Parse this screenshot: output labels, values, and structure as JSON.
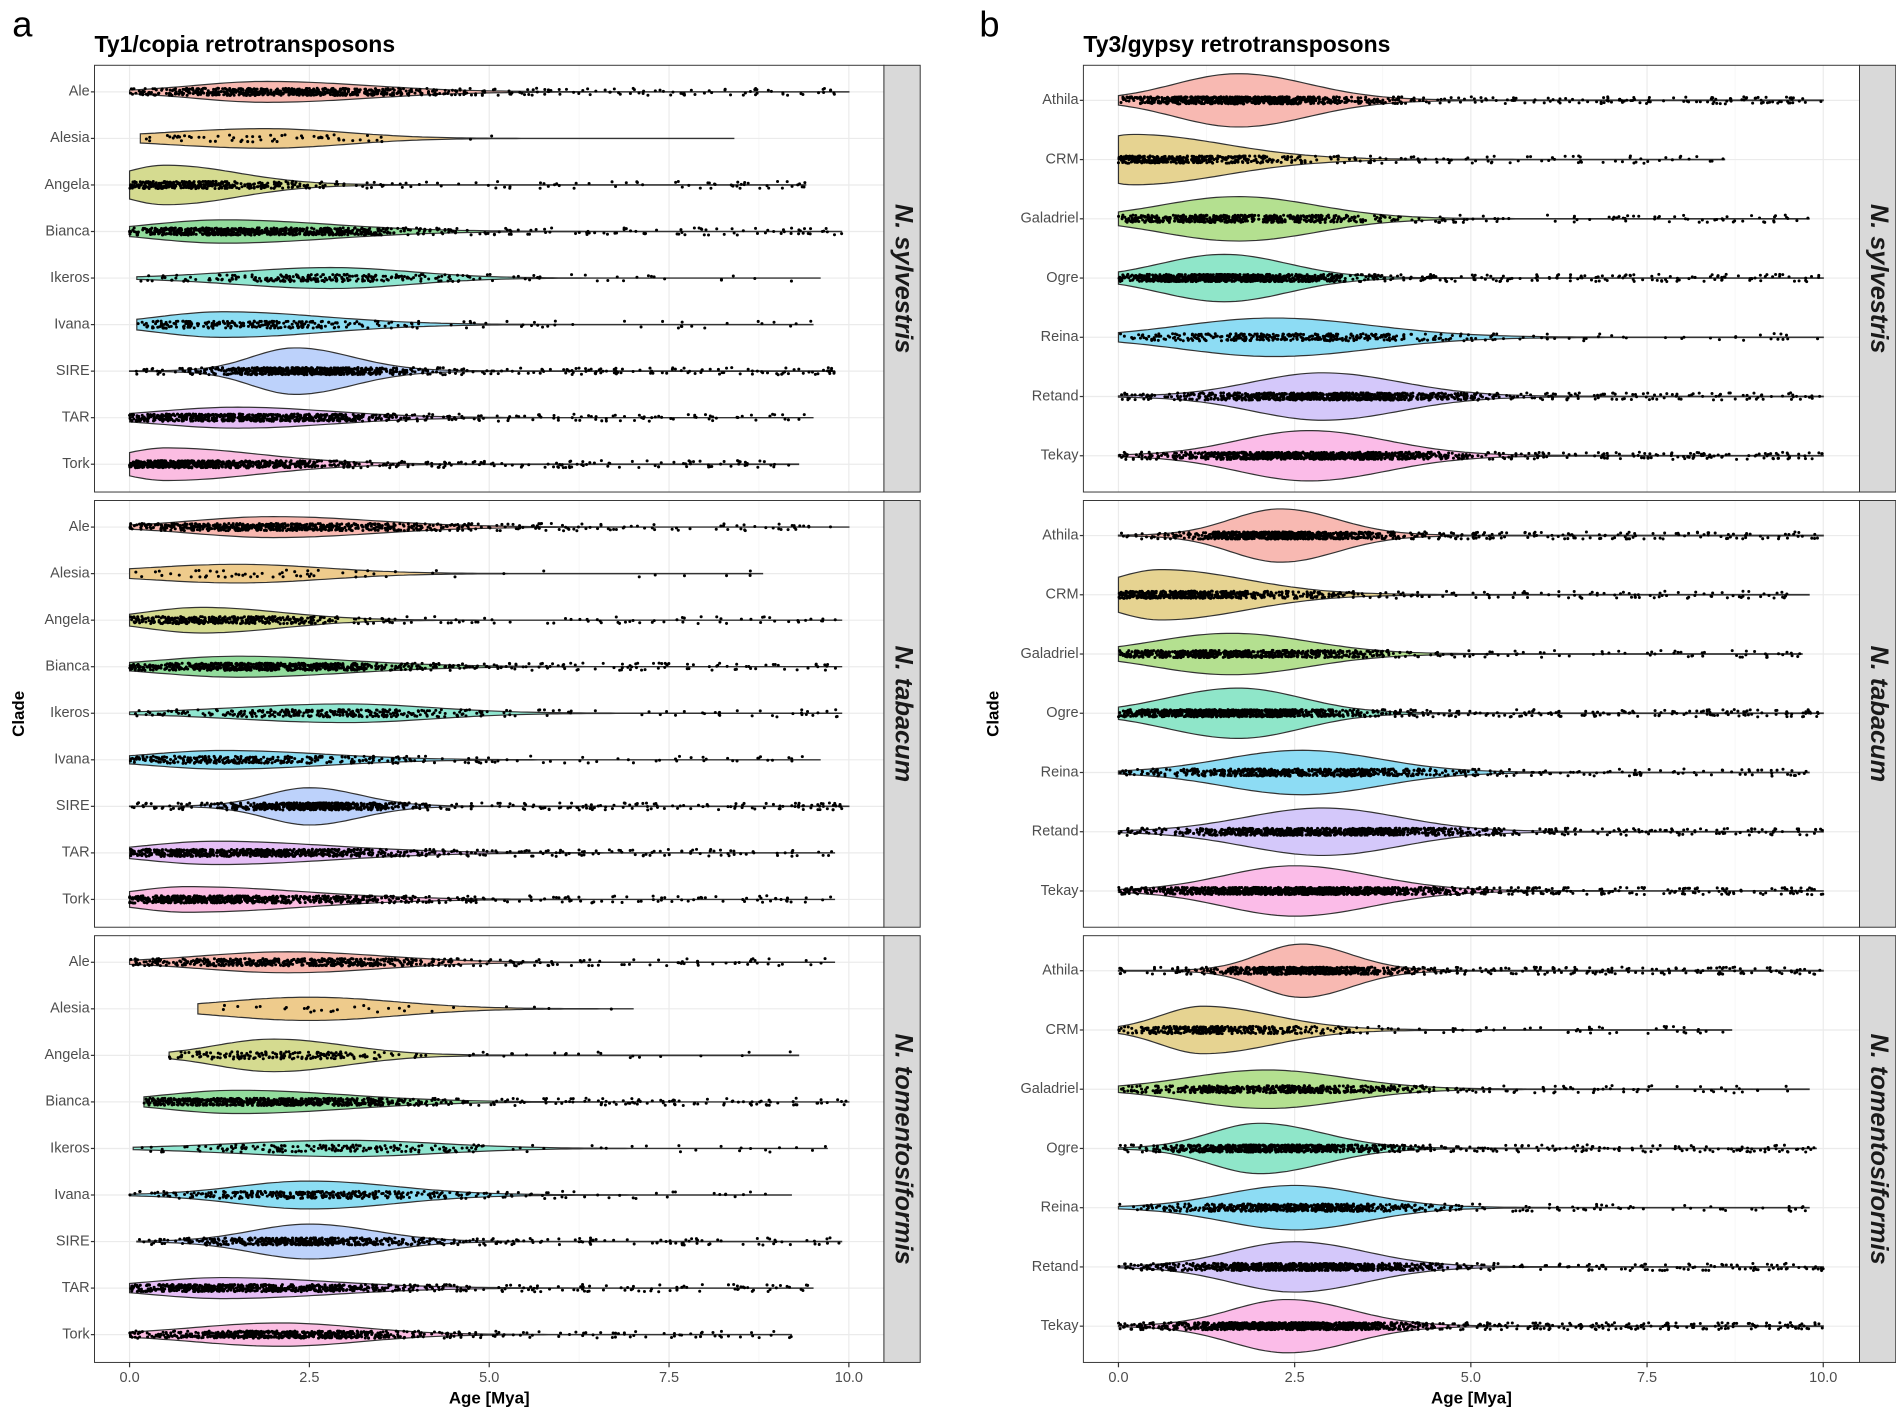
{
  "chart_data": [
    {
      "type": "violin",
      "letter": "a",
      "title": "Ty1/copia retrotransposons",
      "xlabel": "Age [Mya]",
      "ylabel": "Clade",
      "xlim": [
        0,
        10
      ],
      "xticks": [
        "0.0",
        "2.5",
        "5.0",
        "7.5",
        "10.0"
      ],
      "grid": true,
      "clades": [
        {
          "name": "Ale",
          "color": "#F8B8B0"
        },
        {
          "name": "Alesia",
          "color": "#EECB8C"
        },
        {
          "name": "Angela",
          "color": "#D5DB90"
        },
        {
          "name": "Bianca",
          "color": "#92DC9C"
        },
        {
          "name": "Ikeros",
          "color": "#8FE6D0"
        },
        {
          "name": "Ivana",
          "color": "#8CDDF3"
        },
        {
          "name": "SIRE",
          "color": "#BDD2FB"
        },
        {
          "name": "TAR",
          "color": "#E5BEF6"
        },
        {
          "name": "Tork",
          "color": "#FBBDE2"
        }
      ],
      "facets": [
        {
          "species": "N. sylvestris",
          "violins": [
            {
              "min": 0,
              "peak": 1.9,
              "sl": 1.0,
              "sr": 1.4,
              "max": 10.0,
              "width": 0.45,
              "n": 700
            },
            {
              "min": 0.15,
              "peak": 1.9,
              "sl": 1.4,
              "sr": 1.1,
              "max": 8.4,
              "width": 0.42,
              "n": 60
            },
            {
              "min": 0,
              "peak": 0.5,
              "sl": 0.6,
              "sr": 1.0,
              "max": 9.4,
              "width": 0.85,
              "n": 420
            },
            {
              "min": 0,
              "peak": 1.3,
              "sl": 1.0,
              "sr": 1.5,
              "max": 9.9,
              "width": 0.5,
              "n": 800
            },
            {
              "min": 0.1,
              "peak": 2.8,
              "sl": 1.3,
              "sr": 1.1,
              "max": 9.6,
              "width": 0.45,
              "n": 260
            },
            {
              "min": 0.1,
              "peak": 1.3,
              "sl": 0.9,
              "sr": 1.4,
              "max": 9.5,
              "width": 0.55,
              "n": 280
            },
            {
              "min": 0,
              "peak": 2.3,
              "sl": 0.6,
              "sr": 0.8,
              "max": 9.8,
              "width": 1.0,
              "n": 800
            },
            {
              "min": 0,
              "peak": 1.5,
              "sl": 1.1,
              "sr": 1.3,
              "max": 9.5,
              "width": 0.45,
              "n": 750
            },
            {
              "min": 0,
              "peak": 0.5,
              "sl": 0.6,
              "sr": 1.3,
              "max": 9.3,
              "width": 0.7,
              "n": 750
            }
          ]
        },
        {
          "species": "N. tabacum",
          "violins": [
            {
              "min": 0,
              "peak": 2.0,
              "sl": 1.1,
              "sr": 1.4,
              "max": 10.0,
              "width": 0.45,
              "n": 700
            },
            {
              "min": 0,
              "peak": 1.5,
              "sl": 1.3,
              "sr": 1.2,
              "max": 8.8,
              "width": 0.4,
              "n": 60
            },
            {
              "min": 0,
              "peak": 1.0,
              "sl": 0.8,
              "sr": 1.1,
              "max": 9.9,
              "width": 0.55,
              "n": 450
            },
            {
              "min": 0,
              "peak": 1.5,
              "sl": 1.1,
              "sr": 1.5,
              "max": 9.9,
              "width": 0.45,
              "n": 800
            },
            {
              "min": 0,
              "peak": 3.0,
              "sl": 1.5,
              "sr": 1.2,
              "max": 9.9,
              "width": 0.4,
              "n": 350
            },
            {
              "min": 0,
              "peak": 1.3,
              "sl": 1.0,
              "sr": 1.4,
              "max": 9.6,
              "width": 0.4,
              "n": 350
            },
            {
              "min": 0,
              "peak": 2.5,
              "sl": 0.6,
              "sr": 0.7,
              "max": 10.0,
              "width": 0.8,
              "n": 700
            },
            {
              "min": 0,
              "peak": 1.2,
              "sl": 1.0,
              "sr": 1.6,
              "max": 9.8,
              "width": 0.5,
              "n": 800
            },
            {
              "min": 0,
              "peak": 0.8,
              "sl": 0.8,
              "sr": 1.6,
              "max": 9.8,
              "width": 0.55,
              "n": 800
            }
          ]
        },
        {
          "species": "N. tomentosiformis",
          "violins": [
            {
              "min": 0,
              "peak": 2.2,
              "sl": 1.2,
              "sr": 1.3,
              "max": 9.8,
              "width": 0.45,
              "n": 600
            },
            {
              "min": 0.95,
              "peak": 2.5,
              "sl": 1.2,
              "sr": 1.2,
              "max": 7.0,
              "width": 0.5,
              "n": 30
            },
            {
              "min": 0.55,
              "peak": 2.0,
              "sl": 0.8,
              "sr": 1.0,
              "max": 9.3,
              "width": 0.7,
              "n": 200
            },
            {
              "min": 0.2,
              "peak": 1.5,
              "sl": 1.0,
              "sr": 1.5,
              "max": 10.0,
              "width": 0.5,
              "n": 800
            },
            {
              "min": 0.05,
              "peak": 3.0,
              "sl": 1.5,
              "sr": 1.3,
              "max": 9.7,
              "width": 0.35,
              "n": 200
            },
            {
              "min": 0,
              "peak": 2.5,
              "sl": 1.0,
              "sr": 1.2,
              "max": 9.2,
              "width": 0.6,
              "n": 380
            },
            {
              "min": 0.1,
              "peak": 2.5,
              "sl": 0.8,
              "sr": 0.9,
              "max": 9.9,
              "width": 0.75,
              "n": 600
            },
            {
              "min": 0,
              "peak": 1.3,
              "sl": 1.0,
              "sr": 1.5,
              "max": 9.5,
              "width": 0.45,
              "n": 700
            },
            {
              "min": 0,
              "peak": 2.1,
              "sl": 1.2,
              "sr": 1.1,
              "max": 9.2,
              "width": 0.5,
              "n": 700
            }
          ]
        }
      ]
    },
    {
      "type": "violin",
      "letter": "b",
      "title": "Ty3/gypsy retrotransposons",
      "xlabel": "Age [Mya]",
      "ylabel": "Clade",
      "xlim": [
        0,
        10
      ],
      "xticks": [
        "0.0",
        "2.5",
        "5.0",
        "7.5",
        "10.0"
      ],
      "grid": true,
      "clades": [
        {
          "name": "Athila",
          "color": "#F8B9B2"
        },
        {
          "name": "CRM",
          "color": "#E6D391"
        },
        {
          "name": "Galadriel",
          "color": "#B4E090"
        },
        {
          "name": "Ogre",
          "color": "#8FE6C9"
        },
        {
          "name": "Reina",
          "color": "#8DDCF4"
        },
        {
          "name": "Retand",
          "color": "#D4C8FA"
        },
        {
          "name": "Tekay",
          "color": "#FBBCE8"
        }
      ],
      "facets": [
        {
          "species": "N. sylvestris",
          "violins": [
            {
              "min": 0,
              "peak": 1.7,
              "sl": 0.9,
              "sr": 1.0,
              "max": 10.0,
              "width": 0.9,
              "n": 900
            },
            {
              "min": 0,
              "peak": 0.2,
              "sl": 0.6,
              "sr": 1.3,
              "max": 8.6,
              "width": 0.85,
              "n": 450
            },
            {
              "min": 0,
              "peak": 1.7,
              "sl": 1.1,
              "sr": 1.1,
              "max": 9.8,
              "width": 0.75,
              "n": 600
            },
            {
              "min": 0,
              "peak": 1.5,
              "sl": 0.9,
              "sr": 0.9,
              "max": 10.0,
              "width": 0.8,
              "n": 1000
            },
            {
              "min": 0,
              "peak": 2.2,
              "sl": 1.3,
              "sr": 1.4,
              "max": 10.0,
              "width": 0.65,
              "n": 400
            },
            {
              "min": 0,
              "peak": 2.9,
              "sl": 1.0,
              "sr": 1.1,
              "max": 10.0,
              "width": 0.8,
              "n": 1000
            },
            {
              "min": 0,
              "peak": 2.7,
              "sl": 1.0,
              "sr": 1.1,
              "max": 10.0,
              "width": 0.85,
              "n": 1100
            }
          ]
        },
        {
          "species": "N. tabacum",
          "violins": [
            {
              "min": 0,
              "peak": 2.3,
              "sl": 0.7,
              "sr": 0.8,
              "max": 10.0,
              "width": 0.9,
              "n": 900
            },
            {
              "min": 0,
              "peak": 0.6,
              "sl": 0.7,
              "sr": 1.2,
              "max": 9.8,
              "width": 0.85,
              "n": 600
            },
            {
              "min": 0,
              "peak": 1.6,
              "sl": 1.1,
              "sr": 1.1,
              "max": 9.7,
              "width": 0.7,
              "n": 700
            },
            {
              "min": 0,
              "peak": 1.7,
              "sl": 1.0,
              "sr": 0.9,
              "max": 10.0,
              "width": 0.85,
              "n": 1100
            },
            {
              "min": 0,
              "peak": 2.6,
              "sl": 1.1,
              "sr": 1.1,
              "max": 9.8,
              "width": 0.75,
              "n": 700
            },
            {
              "min": 0,
              "peak": 2.9,
              "sl": 1.1,
              "sr": 1.1,
              "max": 10.0,
              "width": 0.8,
              "n": 1000
            },
            {
              "min": 0,
              "peak": 2.5,
              "sl": 1.0,
              "sr": 1.1,
              "max": 10.0,
              "width": 0.85,
              "n": 1300
            }
          ]
        },
        {
          "species": "N. tomentosiformis",
          "violins": [
            {
              "min": 0,
              "peak": 2.6,
              "sl": 0.6,
              "sr": 0.7,
              "max": 10.0,
              "width": 0.9,
              "n": 800
            },
            {
              "min": 0,
              "peak": 1.2,
              "sl": 0.6,
              "sr": 1.0,
              "max": 8.7,
              "width": 0.8,
              "n": 400
            },
            {
              "min": 0,
              "peak": 2.1,
              "sl": 1.1,
              "sr": 1.1,
              "max": 9.8,
              "width": 0.65,
              "n": 600
            },
            {
              "min": 0,
              "peak": 2.0,
              "sl": 0.7,
              "sr": 0.9,
              "max": 9.9,
              "width": 0.85,
              "n": 900
            },
            {
              "min": 0,
              "peak": 2.5,
              "sl": 1.0,
              "sr": 1.0,
              "max": 9.8,
              "width": 0.75,
              "n": 600
            },
            {
              "min": 0,
              "peak": 2.5,
              "sl": 0.9,
              "sr": 1.0,
              "max": 10.0,
              "width": 0.85,
              "n": 1000
            },
            {
              "min": 0,
              "peak": 2.4,
              "sl": 0.8,
              "sr": 0.9,
              "max": 10.0,
              "width": 0.9,
              "n": 1300
            }
          ]
        }
      ]
    }
  ]
}
